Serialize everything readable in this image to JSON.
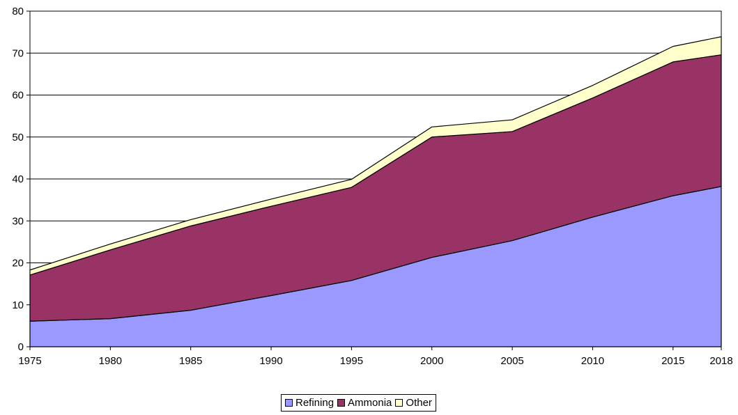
{
  "chart_data": {
    "type": "area",
    "stacked": true,
    "title": "",
    "xlabel": "",
    "ylabel": "",
    "x": [
      "1975",
      "1980",
      "1985",
      "1990",
      "1995",
      "2000",
      "2005",
      "2010",
      "2015",
      "2018"
    ],
    "ylim": [
      0,
      80
    ],
    "yticks": [
      "0",
      "10",
      "20",
      "30",
      "40",
      "50",
      "60",
      "70",
      "80"
    ],
    "grid": true,
    "legend_position": "bottom",
    "series": [
      {
        "name": "Refining",
        "color": "#9999ff",
        "values": [
          6.1,
          6.7,
          8.7,
          12.2,
          15.8,
          21.3,
          25.3,
          30.9,
          36.0,
          38.2
        ]
      },
      {
        "name": "Ammonia",
        "color": "#993366",
        "values": [
          11.0,
          16.4,
          20.1,
          21.3,
          22.2,
          28.7,
          26.0,
          28.4,
          31.9,
          31.4
        ]
      },
      {
        "name": "Other",
        "color": "#ffffcc",
        "values": [
          1.2,
          1.4,
          1.5,
          1.7,
          1.9,
          2.4,
          2.8,
          3.0,
          3.7,
          4.3
        ]
      }
    ]
  }
}
